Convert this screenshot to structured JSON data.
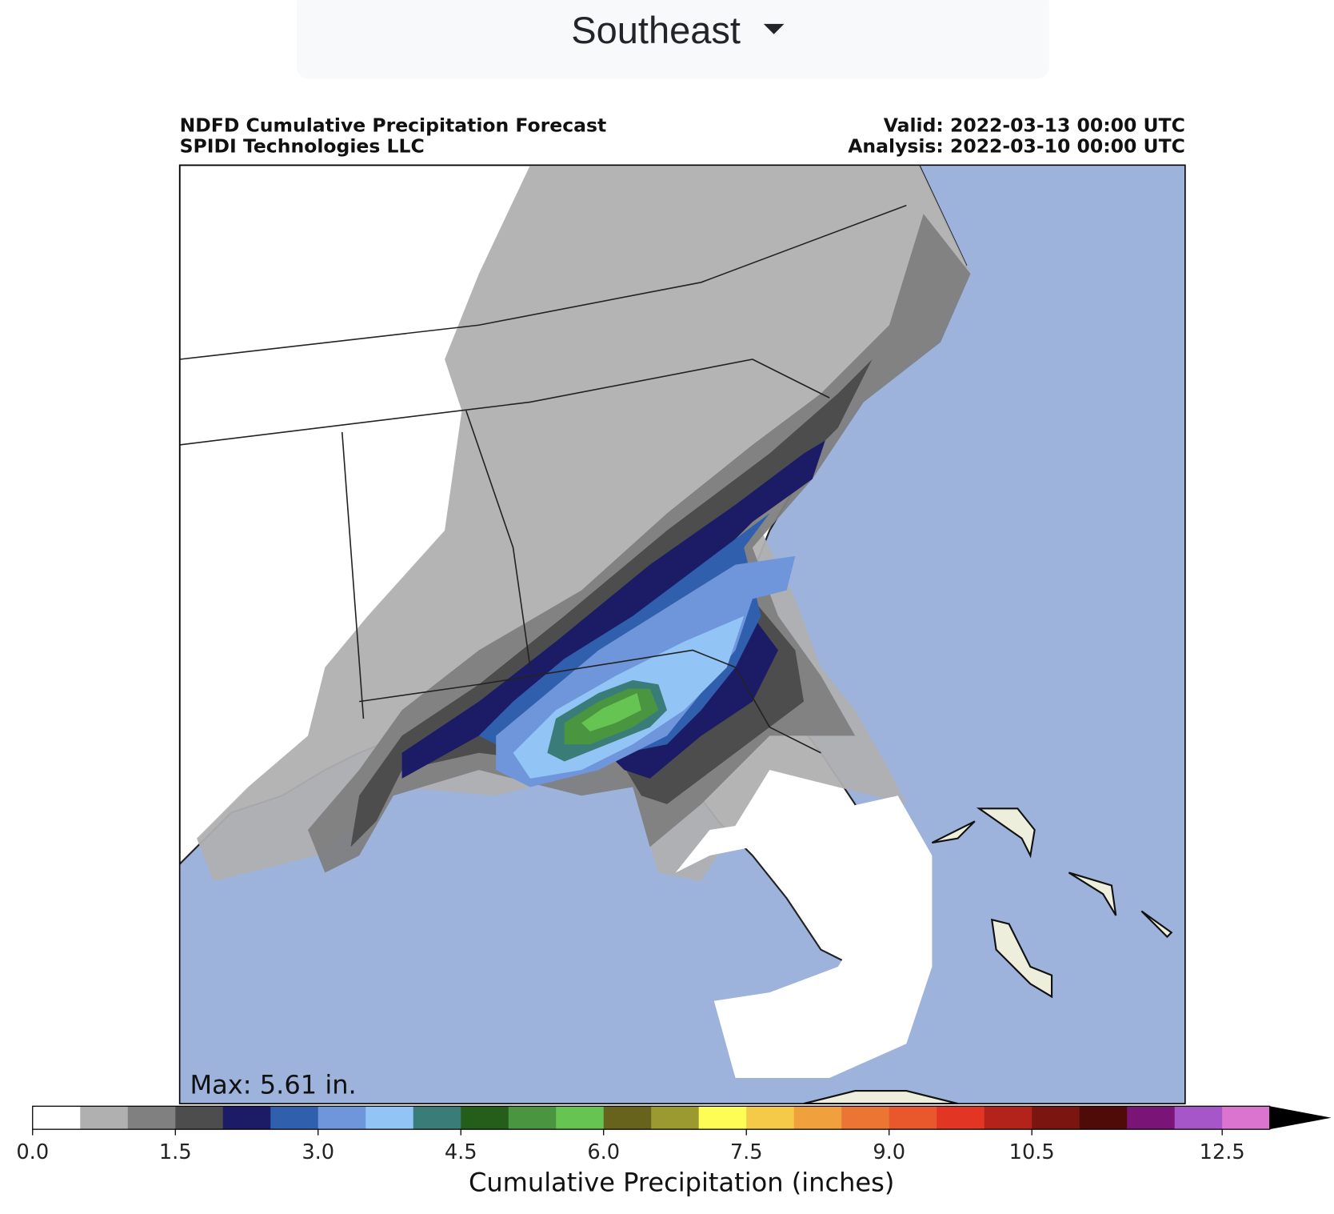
{
  "dropdown": {
    "label": "Southeast"
  },
  "chart_data": {
    "type": "map",
    "title": "NDFD Cumulative Precipitation Forecast",
    "subtitle": "SPIDI Technologies LLC",
    "valid": "Valid: 2022-03-13 00:00 UTC",
    "analysis": "Analysis: 2022-03-10 00:00 UTC",
    "annotation": "Max: 5.61 in.",
    "colorbar": {
      "label": "Cumulative Precipitation (inches)",
      "lim": [
        0,
        13
      ],
      "ticks": [
        {
          "value": 0,
          "label": "0.0"
        },
        {
          "value": 1.5,
          "label": "1.5"
        },
        {
          "value": 3,
          "label": "3.0"
        },
        {
          "value": 4.5,
          "label": "4.5"
        },
        {
          "value": 6,
          "label": "6.0"
        },
        {
          "value": 7.5,
          "label": "7.5"
        },
        {
          "value": 9,
          "label": "9.0"
        },
        {
          "value": 10.5,
          "label": "10.5"
        },
        {
          "value": 12.5,
          "label": "12.5"
        }
      ],
      "colors": [
        "#ffffff",
        "#b0b0b0",
        "#808080",
        "#4d4d4d",
        "#1c1c66",
        "#2f5fad",
        "#6f95db",
        "#92c4f5",
        "#3a7d78",
        "#245e1a",
        "#4a9540",
        "#66c552",
        "#68631c",
        "#9a9a30",
        "#fdfd55",
        "#f4ca48",
        "#f0a13e",
        "#ec7533",
        "#e9572c",
        "#e33524",
        "#b3231c",
        "#7b150f",
        "#4f0b07",
        "#7a1477",
        "#a756c9",
        "#da74cf"
      ],
      "extend_color": "#000000"
    }
  }
}
